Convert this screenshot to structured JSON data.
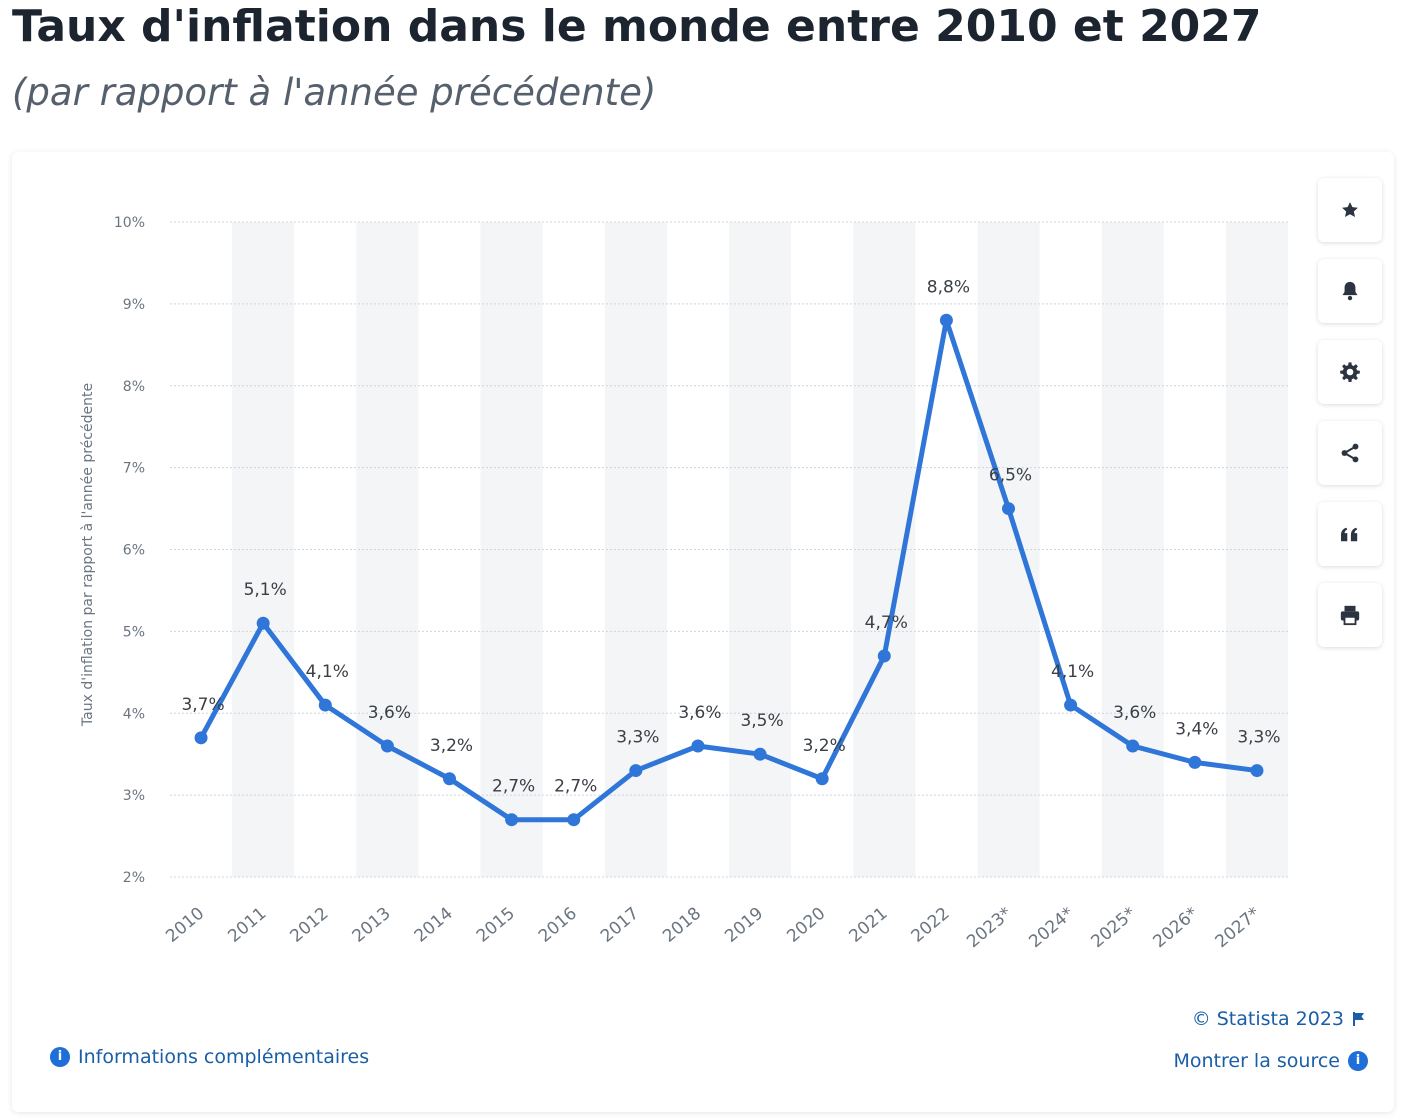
{
  "header": {
    "title": "Taux d'inflation dans le monde entre 2010 et 2027",
    "subtitle": "(par rapport à l'année précédente)"
  },
  "toolbar": [
    {
      "name": "star-icon",
      "label": "favorite"
    },
    {
      "name": "bell-icon",
      "label": "notifications"
    },
    {
      "name": "gear-icon",
      "label": "settings"
    },
    {
      "name": "share-icon",
      "label": "share"
    },
    {
      "name": "quote-icon",
      "label": "cite"
    },
    {
      "name": "print-icon",
      "label": "print"
    }
  ],
  "footer": {
    "copyright": "© Statista 2023",
    "source": "Montrer la source",
    "more_info": "Informations complémentaires"
  },
  "colors": {
    "line": "#2f76d8",
    "grid": "#cfd5dc",
    "band": "#f4f5f7",
    "tick": "#6b7580",
    "label": "#3a3f45"
  },
  "chart_data": {
    "type": "line",
    "title": "Taux d'inflation dans le monde entre 2010 et 2027",
    "subtitle": "(par rapport à l'année précédente)",
    "xlabel": "",
    "ylabel": "Taux d'inflation par rapport à l'année précédente",
    "categories": [
      "2010",
      "2011",
      "2012",
      "2013",
      "2014",
      "2015",
      "2016",
      "2017",
      "2018",
      "2019",
      "2020",
      "2021",
      "2022",
      "2023*",
      "2024*",
      "2025*",
      "2026*",
      "2027*"
    ],
    "values": [
      3.7,
      5.1,
      4.1,
      3.6,
      3.2,
      2.7,
      2.7,
      3.3,
      3.6,
      3.5,
      3.2,
      4.7,
      8.8,
      6.5,
      4.1,
      3.6,
      3.4,
      3.3
    ],
    "data_labels": [
      "3,7%",
      "5,1%",
      "4,1%",
      "3,6%",
      "3,2%",
      "2,7%",
      "2,7%",
      "3,3%",
      "3,6%",
      "3,5%",
      "3,2%",
      "4,7%",
      "8,8%",
      "6,5%",
      "4,1%",
      "3,6%",
      "3,4%",
      "3,3%"
    ],
    "yticks": [
      2,
      3,
      4,
      5,
      6,
      7,
      8,
      9,
      10
    ],
    "ytick_labels": [
      "2%",
      "3%",
      "4%",
      "5%",
      "6%",
      "7%",
      "8%",
      "9%",
      "10%"
    ],
    "ylim": [
      2,
      10
    ],
    "grid": true,
    "legend": "none"
  }
}
